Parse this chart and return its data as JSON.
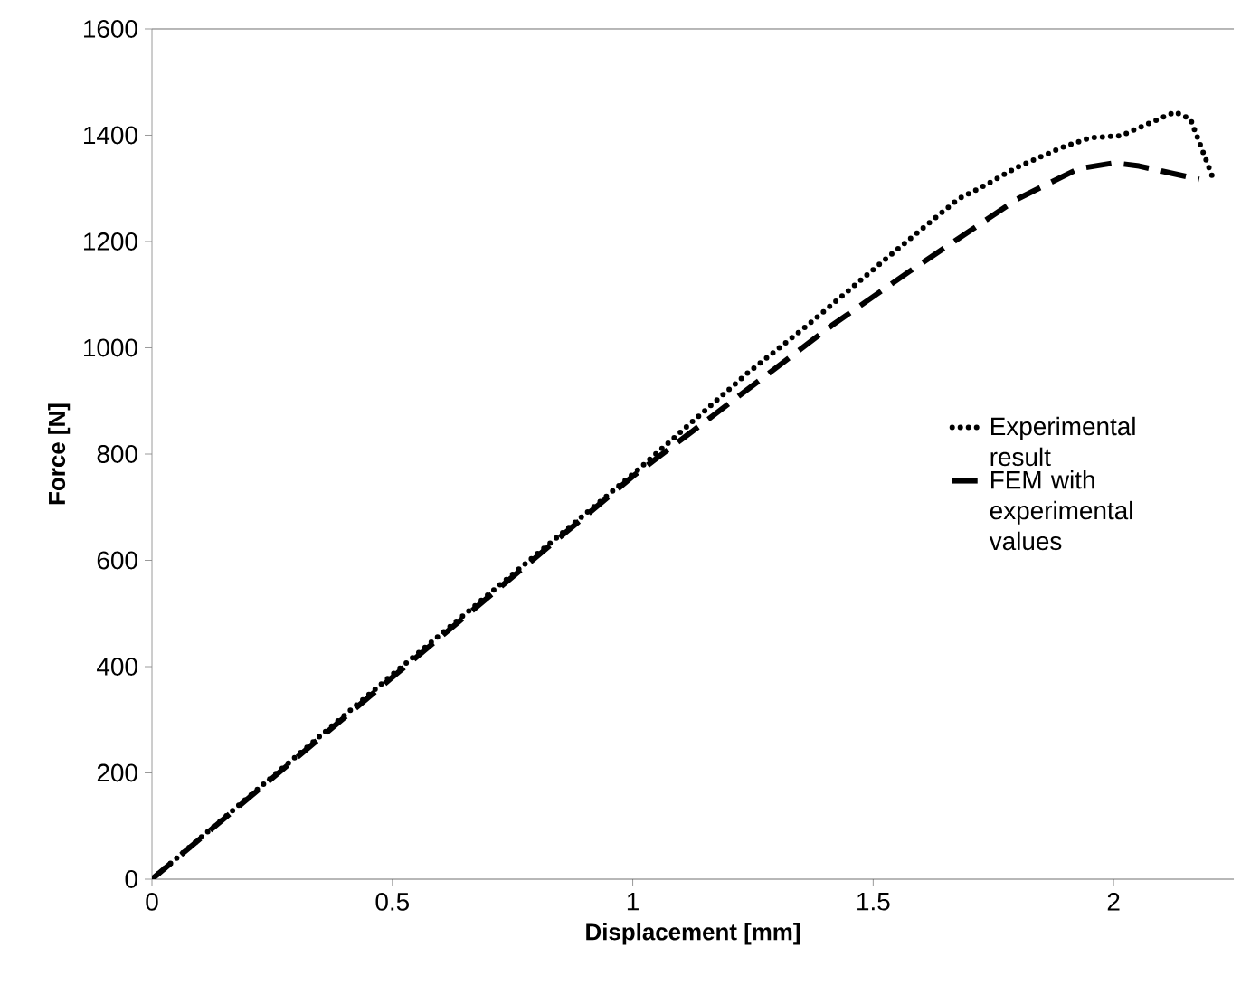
{
  "chart_data": {
    "type": "line",
    "xlabel": "Displacement [mm]",
    "ylabel": "Force [N]",
    "xlim": [
      0,
      2.25
    ],
    "ylim": [
      0,
      1600
    ],
    "xticks": [
      0,
      0.5,
      1,
      1.5,
      2
    ],
    "yticks": [
      0,
      200,
      400,
      600,
      800,
      1000,
      1200,
      1400,
      1600
    ],
    "legend": "right",
    "grid": false,
    "series": [
      {
        "name": "Experimental result",
        "color": "#000000",
        "line_style": "dotted",
        "x": [
          0,
          0.5,
          1,
          1.237,
          1.363,
          1.526,
          1.677,
          1.727,
          1.8,
          1.89,
          1.95,
          2.015,
          2.128,
          2.16,
          2.209
        ],
        "values": [
          0,
          385,
          762,
          951,
          1042,
          1167,
          1280,
          1303,
          1340,
          1376,
          1395,
          1399,
          1444,
          1430,
          1314
        ]
      },
      {
        "name": "FEM with experimental values",
        "color": "#000000",
        "line_style": "dashed",
        "x": [
          0,
          0.5,
          1,
          1.2,
          1.414,
          1.576,
          1.8,
          1.927,
          2.002,
          2.053,
          2.178
        ],
        "values": [
          0,
          380,
          758,
          895,
          1042,
          1144,
          1280,
          1337,
          1348,
          1342,
          1317
        ]
      }
    ]
  }
}
